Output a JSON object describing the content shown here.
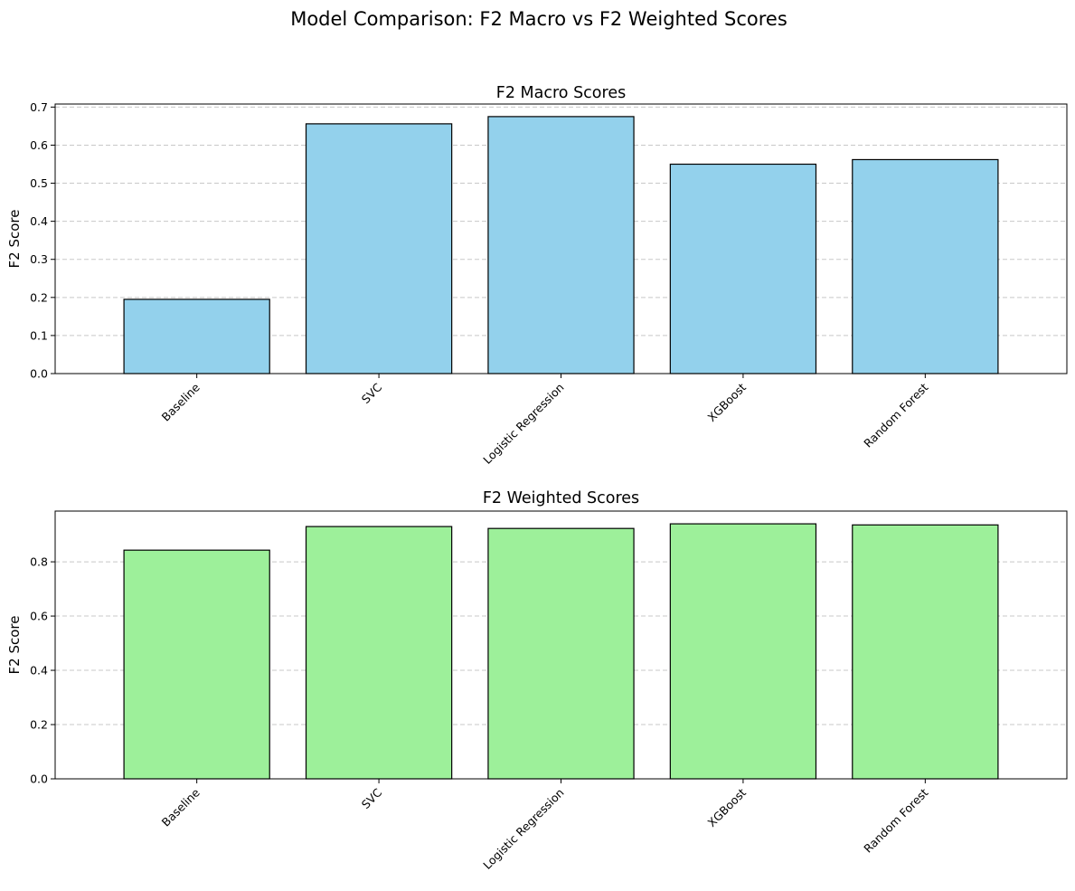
{
  "figure": {
    "title": "Model Comparison: F2 Macro vs F2 Weighted Scores"
  },
  "chart_data": [
    {
      "type": "bar",
      "title": "F2 Macro Scores",
      "xlabel": "",
      "ylabel": "F2 Score",
      "categories": [
        "Baseline",
        "SVC",
        "Logistic Regression",
        "XGBoost",
        "Random Forest"
      ],
      "values": [
        0.195,
        0.656,
        0.675,
        0.55,
        0.562
      ],
      "ylim": [
        0,
        0.708
      ],
      "yticks": [
        0.0,
        0.1,
        0.2,
        0.3,
        0.4,
        0.5,
        0.6,
        0.7
      ],
      "ytick_labels": [
        "0.0",
        "0.1",
        "0.2",
        "0.3",
        "0.4",
        "0.5",
        "0.6",
        "0.7"
      ],
      "bar_color": "#93d1ec",
      "edge_color": "#000000",
      "grid": "y-dashed",
      "xtick_rotation": 45
    },
    {
      "type": "bar",
      "title": "F2 Weighted Scores",
      "xlabel": "",
      "ylabel": "F2 Score",
      "categories": [
        "Baseline",
        "SVC",
        "Logistic Regression",
        "XGBoost",
        "Random Forest"
      ],
      "values": [
        0.843,
        0.93,
        0.923,
        0.94,
        0.936
      ],
      "ylim": [
        0,
        0.987
      ],
      "yticks": [
        0.0,
        0.2,
        0.4,
        0.6,
        0.8
      ],
      "ytick_labels": [
        "0.0",
        "0.2",
        "0.4",
        "0.6",
        "0.8"
      ],
      "bar_color": "#9df09a",
      "edge_color": "#000000",
      "grid": "y-dashed",
      "xtick_rotation": 45
    }
  ]
}
